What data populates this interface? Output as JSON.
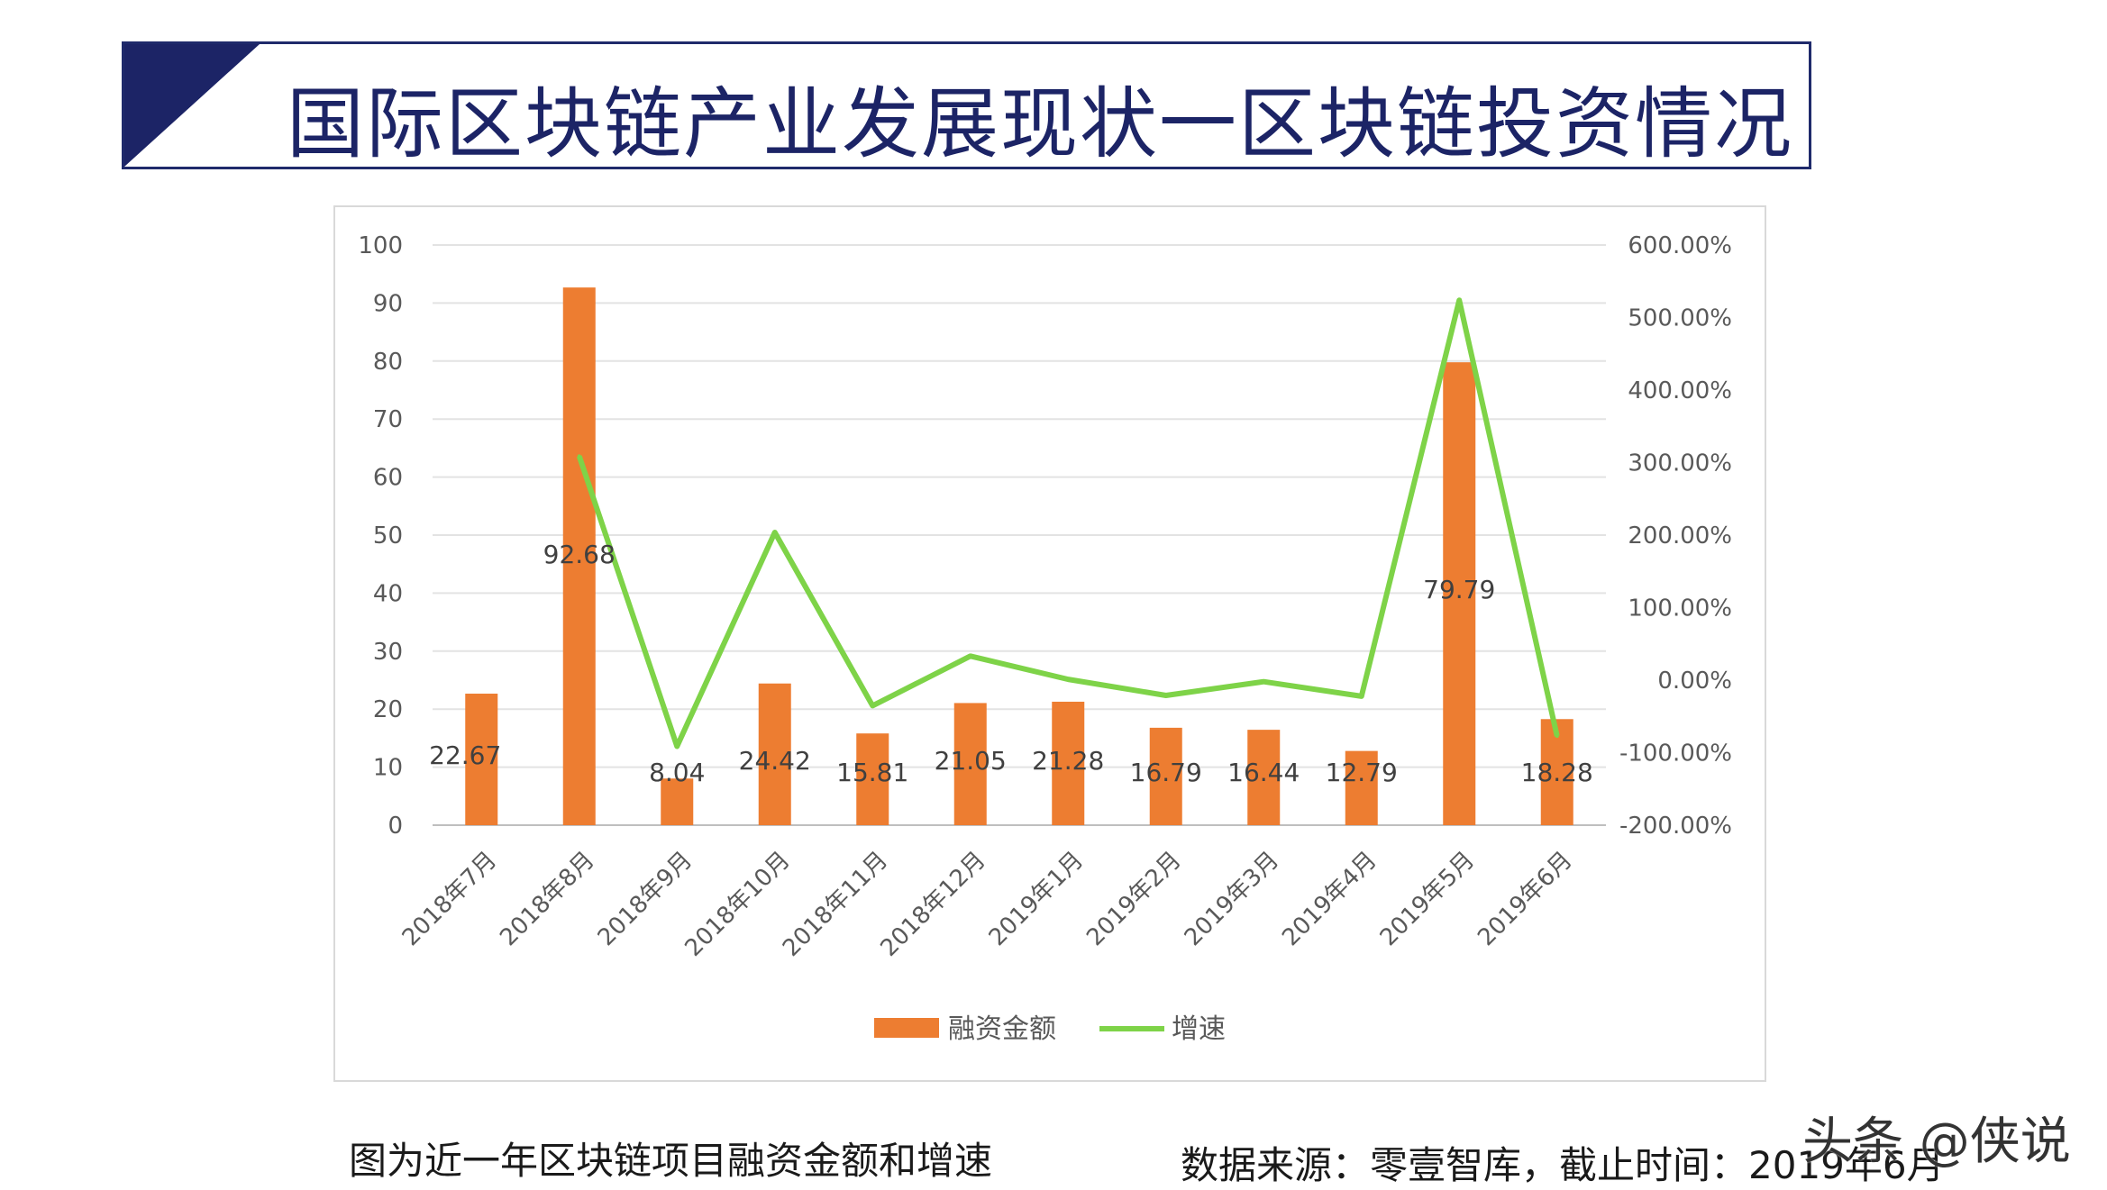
{
  "slide": {
    "title": "国际区块链产业发展现状一区块链投资情况",
    "caption_left": "图为近一年区块链项目融资金额和增速",
    "caption_right": "数据来源：零壹智库，截止时间：2019年6月",
    "watermark": "头条 @侠说"
  },
  "colors": {
    "title_navy": "#1c2466",
    "bar": "#ed7d31",
    "line": "#7ed348"
  },
  "chart_data": {
    "type": "bar",
    "categories": [
      "2018年7月",
      "2018年8月",
      "2018年9月",
      "2018年10月",
      "2018年11月",
      "2018年12月",
      "2019年1月",
      "2019年2月",
      "2019年3月",
      "2019年4月",
      "2019年5月",
      "2019年6月"
    ],
    "series": [
      {
        "name": "融资金额",
        "type": "bar",
        "axis": "left",
        "values": [
          22.67,
          92.68,
          8.04,
          24.42,
          15.81,
          21.05,
          21.28,
          16.79,
          16.44,
          12.79,
          79.79,
          18.28
        ],
        "data_labels": [
          "22.67",
          "92.68",
          "8.04",
          "24.42",
          "15.81",
          "21.05",
          "21.28",
          "16.79",
          "16.44",
          "12.79",
          "79.79",
          "18.28"
        ]
      },
      {
        "name": "增速",
        "type": "line",
        "axis": "right",
        "values": [
          null,
          308.8,
          -91.3,
          203.7,
          -35.3,
          33.1,
          1.1,
          -21.1,
          -2.1,
          -22.2,
          523.9,
          -77.1
        ]
      }
    ],
    "ylim_left": [
      0,
      100
    ],
    "ylim_right": [
      -200,
      600
    ],
    "yticks_left": [
      "0",
      "10",
      "20",
      "30",
      "40",
      "50",
      "60",
      "70",
      "80",
      "90",
      "100"
    ],
    "yticks_right": [
      "-200.00%",
      "-100.00%",
      "0.00%",
      "100.00%",
      "200.00%",
      "300.00%",
      "400.00%",
      "500.00%",
      "600.00%"
    ],
    "grid": true,
    "legend_position": "bottom"
  }
}
